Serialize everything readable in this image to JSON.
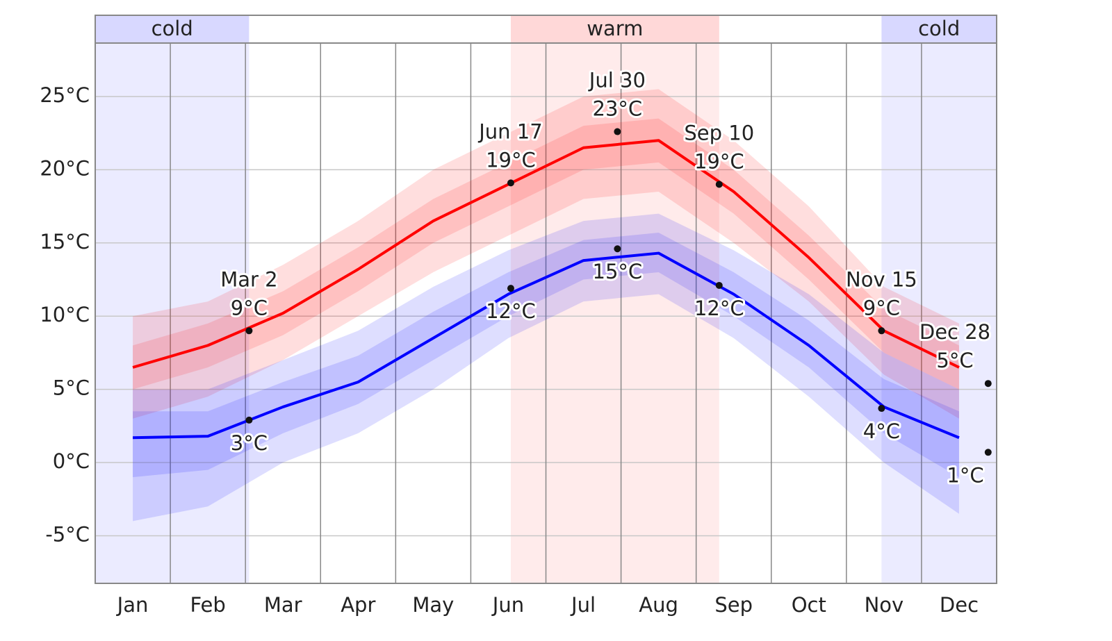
{
  "chart_data": {
    "type": "line",
    "categories": [
      "Jan",
      "Feb",
      "Mar",
      "Apr",
      "May",
      "Jun",
      "Jul",
      "Aug",
      "Sep",
      "Oct",
      "Nov",
      "Dec"
    ],
    "ylim": [
      -8.25,
      28.65
    ],
    "yticks": [
      {
        "value": -5,
        "label": "-5°C"
      },
      {
        "value": 0,
        "label": "0°C"
      },
      {
        "value": 5,
        "label": "5°C"
      },
      {
        "value": 10,
        "label": "10°C"
      },
      {
        "value": 15,
        "label": "15°C"
      },
      {
        "value": 20,
        "label": "20°C"
      },
      {
        "value": 25,
        "label": "25°C"
      }
    ],
    "grid": true,
    "seasons": [
      {
        "label": "cold",
        "end": "Mar 2",
        "color": "#d8d8ff"
      },
      {
        "label": "warm",
        "start": "Jun 17",
        "end": "Sep 10",
        "color": "#ffd8d8"
      },
      {
        "label": "cold",
        "start": "Nov 15",
        "color": "#d8d8ff"
      }
    ],
    "series": [
      {
        "color": "#ff0000",
        "values": [
          6.5,
          8,
          10.2,
          13.2,
          16.5,
          19,
          21.5,
          22,
          18.5,
          14,
          9,
          6.5
        ],
        "band_outer": {
          "low": [
            3,
            4.5,
            7,
            10,
            13,
            15.5,
            18,
            18.5,
            15,
            11,
            6,
            3
          ],
          "high": [
            10,
            11,
            13.5,
            16.5,
            20,
            22.5,
            25,
            25.5,
            22,
            17.5,
            12,
            9.5
          ]
        },
        "band_inner": {
          "low": [
            5,
            6.5,
            8.7,
            11.7,
            15,
            17.5,
            20,
            20.5,
            17,
            12.5,
            7.5,
            5
          ],
          "high": [
            8,
            9.5,
            11.7,
            14.7,
            18,
            20.5,
            23,
            23.5,
            20,
            15.5,
            10.5,
            8
          ]
        },
        "annotations": {
          "x": [
            "Mar 2",
            "Jun 17",
            "Jul 30",
            "Sep 10",
            "Nov 15",
            "Dec 28"
          ],
          "values": [
            9,
            19.1,
            22.6,
            19,
            9,
            5.4
          ],
          "value_labels": [
            "9°C",
            "19°C",
            "23°C",
            "19°C",
            "9°C",
            "5°C"
          ]
        }
      },
      {
        "color": "#0000ff",
        "values": [
          1.7,
          1.8,
          3.8,
          5.5,
          8.5,
          11.5,
          13.8,
          14.3,
          11.5,
          8,
          3.8,
          1.7
        ],
        "band_outer": {
          "low": [
            -4,
            -3,
            0,
            2,
            5,
            8.5,
            11,
            11.5,
            8.5,
            4.5,
            0,
            -3.5
          ],
          "high": [
            5,
            5,
            7,
            9,
            12,
            14.5,
            16.5,
            17,
            14.5,
            11.5,
            7.5,
            5
          ]
        },
        "band_inner": {
          "low": [
            -1,
            -0.5,
            2,
            4,
            7,
            10,
            12.5,
            13,
            10,
            6.5,
            2,
            -1
          ],
          "high": [
            3.5,
            3.5,
            5.5,
            7.3,
            10.3,
            13,
            15.2,
            15.7,
            13,
            9.7,
            5.7,
            3.5
          ]
        },
        "annotations": {
          "x": [
            "Mar 2",
            "Jun 17",
            "Jul 30",
            "Sep 10",
            "Nov 15",
            "Dec 28"
          ],
          "values": [
            2.9,
            11.9,
            14.6,
            12.1,
            3.7,
            0.7
          ],
          "value_labels": [
            "3°C",
            "12°C",
            "15°C",
            "12°C",
            "4°C",
            "1°C"
          ]
        }
      }
    ]
  }
}
